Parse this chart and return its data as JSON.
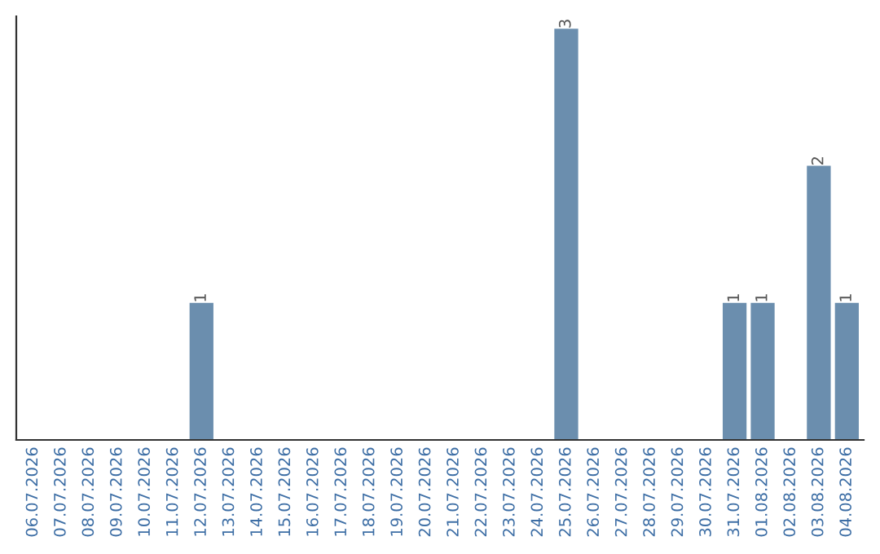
{
  "chart_data": {
    "type": "bar",
    "categories": [
      "06.07.2026",
      "07.07.2026",
      "08.07.2026",
      "09.07.2026",
      "10.07.2026",
      "11.07.2026",
      "12.07.2026",
      "13.07.2026",
      "14.07.2026",
      "15.07.2026",
      "16.07.2026",
      "17.07.2026",
      "18.07.2026",
      "19.07.2026",
      "20.07.2026",
      "21.07.2026",
      "22.07.2026",
      "23.07.2026",
      "24.07.2026",
      "25.07.2026",
      "26.07.2026",
      "27.07.2026",
      "28.07.2026",
      "29.07.2026",
      "30.07.2026",
      "31.07.2026",
      "01.08.2026",
      "02.08.2026",
      "03.08.2026",
      "04.08.2026"
    ],
    "values": [
      0,
      0,
      0,
      0,
      0,
      0,
      1,
      0,
      0,
      0,
      0,
      0,
      0,
      0,
      0,
      0,
      0,
      0,
      0,
      3,
      0,
      0,
      0,
      0,
      0,
      1,
      1,
      0,
      2,
      1
    ],
    "value_labels": [
      null,
      null,
      null,
      null,
      null,
      null,
      "1",
      null,
      null,
      null,
      null,
      null,
      null,
      null,
      null,
      null,
      null,
      null,
      null,
      "3",
      null,
      null,
      null,
      null,
      null,
      "1",
      "1",
      null,
      "2",
      "1"
    ],
    "color": "#6b8eae",
    "tick_labels": "x",
    "grid": false,
    "legend": false
  }
}
